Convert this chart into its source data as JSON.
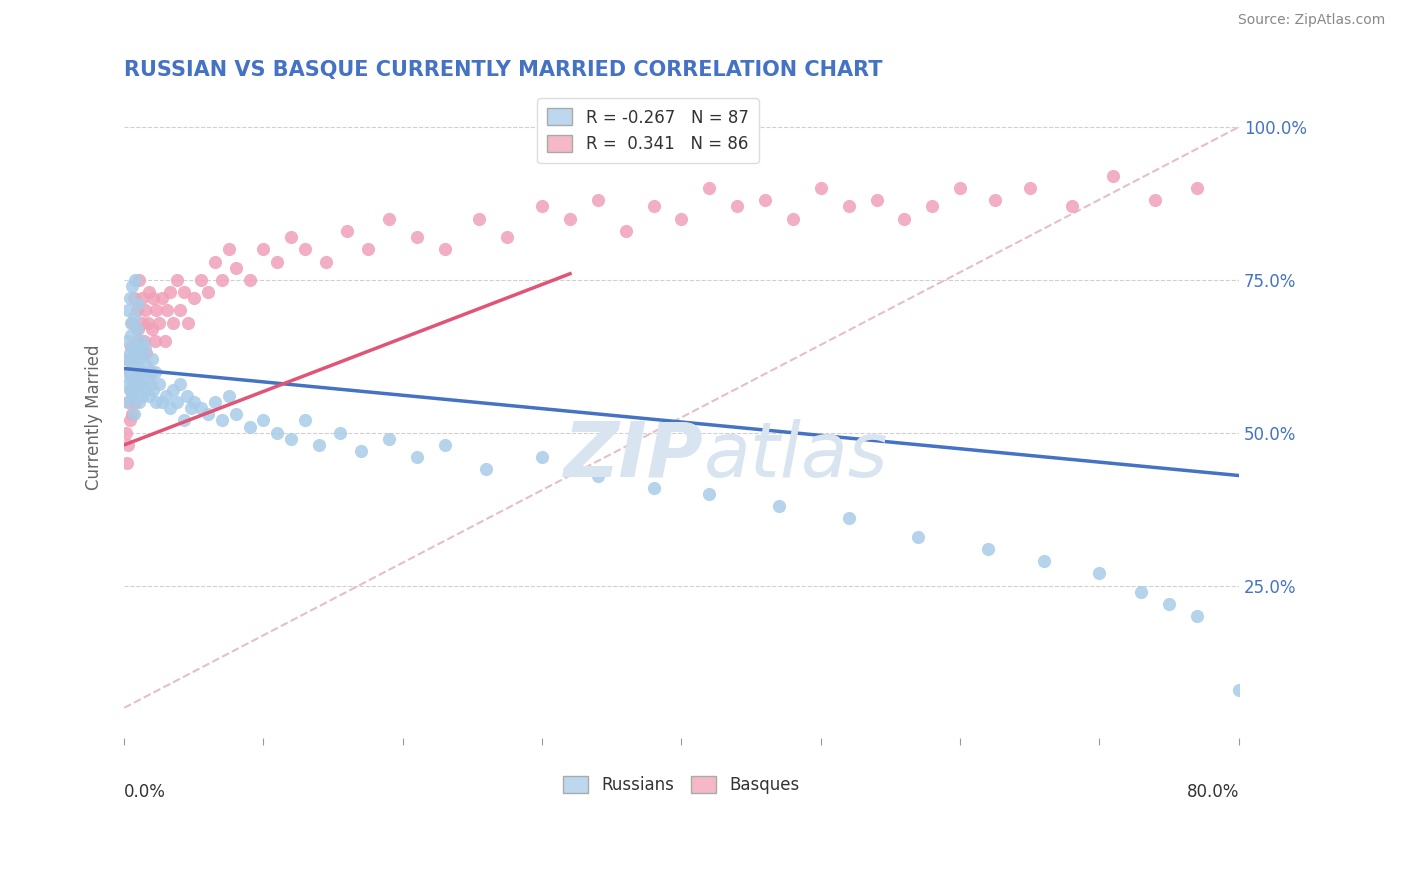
{
  "title": "RUSSIAN VS BASQUE CURRENTLY MARRIED CORRELATION CHART",
  "source": "Source: ZipAtlas.com",
  "ylabel": "Currently Married",
  "right_yticks": [
    "25.0%",
    "50.0%",
    "75.0%",
    "100.0%"
  ],
  "right_ytick_vals": [
    0.25,
    0.5,
    0.75,
    1.0
  ],
  "xlim": [
    0.0,
    0.8
  ],
  "ylim": [
    0.0,
    1.05
  ],
  "russian_R": -0.267,
  "russian_N": 87,
  "basque_R": 0.341,
  "basque_N": 86,
  "russian_color": "#a8cce8",
  "basque_color": "#f0a0b8",
  "russian_line_color": "#4472c4",
  "basque_line_color": "#e05575",
  "dashed_line_color": "#e0b0b8",
  "legend_russian_color": "#bdd7ee",
  "legend_basque_color": "#f4b8c8",
  "background_color": "#ffffff",
  "title_color": "#4472c4",
  "watermark_color": "#d8e4f0",
  "grid_color": "#d0d0d0",
  "russians_x": [
    0.001,
    0.002,
    0.002,
    0.003,
    0.003,
    0.003,
    0.004,
    0.004,
    0.004,
    0.005,
    0.005,
    0.005,
    0.006,
    0.006,
    0.006,
    0.007,
    0.007,
    0.007,
    0.007,
    0.008,
    0.008,
    0.008,
    0.009,
    0.009,
    0.01,
    0.01,
    0.01,
    0.011,
    0.011,
    0.012,
    0.012,
    0.013,
    0.013,
    0.014,
    0.015,
    0.015,
    0.016,
    0.017,
    0.018,
    0.019,
    0.02,
    0.021,
    0.022,
    0.023,
    0.025,
    0.027,
    0.03,
    0.033,
    0.035,
    0.038,
    0.04,
    0.043,
    0.045,
    0.048,
    0.05,
    0.055,
    0.06,
    0.065,
    0.07,
    0.075,
    0.08,
    0.09,
    0.1,
    0.11,
    0.12,
    0.13,
    0.14,
    0.155,
    0.17,
    0.19,
    0.21,
    0.23,
    0.26,
    0.3,
    0.34,
    0.38,
    0.42,
    0.47,
    0.52,
    0.57,
    0.62,
    0.66,
    0.7,
    0.73,
    0.75,
    0.77,
    0.8
  ],
  "russians_y": [
    0.62,
    0.65,
    0.58,
    0.7,
    0.6,
    0.55,
    0.63,
    0.72,
    0.57,
    0.66,
    0.59,
    0.68,
    0.61,
    0.74,
    0.56,
    0.64,
    0.58,
    0.69,
    0.53,
    0.62,
    0.75,
    0.57,
    0.6,
    0.67,
    0.64,
    0.58,
    0.71,
    0.62,
    0.55,
    0.65,
    0.58,
    0.63,
    0.56,
    0.6,
    0.64,
    0.57,
    0.61,
    0.59,
    0.56,
    0.58,
    0.62,
    0.57,
    0.6,
    0.55,
    0.58,
    0.55,
    0.56,
    0.54,
    0.57,
    0.55,
    0.58,
    0.52,
    0.56,
    0.54,
    0.55,
    0.54,
    0.53,
    0.55,
    0.52,
    0.56,
    0.53,
    0.51,
    0.52,
    0.5,
    0.49,
    0.52,
    0.48,
    0.5,
    0.47,
    0.49,
    0.46,
    0.48,
    0.44,
    0.46,
    0.43,
    0.41,
    0.4,
    0.38,
    0.36,
    0.33,
    0.31,
    0.29,
    0.27,
    0.24,
    0.22,
    0.2,
    0.08
  ],
  "basques_x": [
    0.001,
    0.002,
    0.002,
    0.003,
    0.003,
    0.004,
    0.004,
    0.005,
    0.005,
    0.006,
    0.006,
    0.007,
    0.007,
    0.008,
    0.008,
    0.009,
    0.009,
    0.01,
    0.01,
    0.011,
    0.011,
    0.012,
    0.013,
    0.013,
    0.014,
    0.015,
    0.016,
    0.017,
    0.018,
    0.019,
    0.02,
    0.021,
    0.022,
    0.023,
    0.025,
    0.027,
    0.029,
    0.031,
    0.033,
    0.035,
    0.038,
    0.04,
    0.043,
    0.046,
    0.05,
    0.055,
    0.06,
    0.065,
    0.07,
    0.075,
    0.08,
    0.09,
    0.1,
    0.11,
    0.12,
    0.13,
    0.145,
    0.16,
    0.175,
    0.19,
    0.21,
    0.23,
    0.255,
    0.275,
    0.3,
    0.32,
    0.34,
    0.36,
    0.38,
    0.4,
    0.42,
    0.44,
    0.46,
    0.48,
    0.5,
    0.52,
    0.54,
    0.56,
    0.58,
    0.6,
    0.625,
    0.65,
    0.68,
    0.71,
    0.74,
    0.77
  ],
  "basques_y": [
    0.5,
    0.45,
    0.62,
    0.55,
    0.48,
    0.6,
    0.52,
    0.57,
    0.64,
    0.53,
    0.68,
    0.58,
    0.72,
    0.62,
    0.55,
    0.65,
    0.7,
    0.6,
    0.67,
    0.58,
    0.75,
    0.63,
    0.68,
    0.72,
    0.65,
    0.7,
    0.63,
    0.68,
    0.73,
    0.6,
    0.67,
    0.72,
    0.65,
    0.7,
    0.68,
    0.72,
    0.65,
    0.7,
    0.73,
    0.68,
    0.75,
    0.7,
    0.73,
    0.68,
    0.72,
    0.75,
    0.73,
    0.78,
    0.75,
    0.8,
    0.77,
    0.75,
    0.8,
    0.78,
    0.82,
    0.8,
    0.78,
    0.83,
    0.8,
    0.85,
    0.82,
    0.8,
    0.85,
    0.82,
    0.87,
    0.85,
    0.88,
    0.83,
    0.87,
    0.85,
    0.9,
    0.87,
    0.88,
    0.85,
    0.9,
    0.87,
    0.88,
    0.85,
    0.87,
    0.9,
    0.88,
    0.9,
    0.87,
    0.92,
    0.88,
    0.9
  ],
  "russian_line_x": [
    0.0,
    0.8
  ],
  "russian_line_y": [
    0.605,
    0.43
  ],
  "basque_line_x": [
    0.0,
    0.32
  ],
  "basque_line_y": [
    0.48,
    0.76
  ],
  "dashed_line_x": [
    0.0,
    0.8
  ],
  "dashed_line_y": [
    0.05,
    1.0
  ]
}
